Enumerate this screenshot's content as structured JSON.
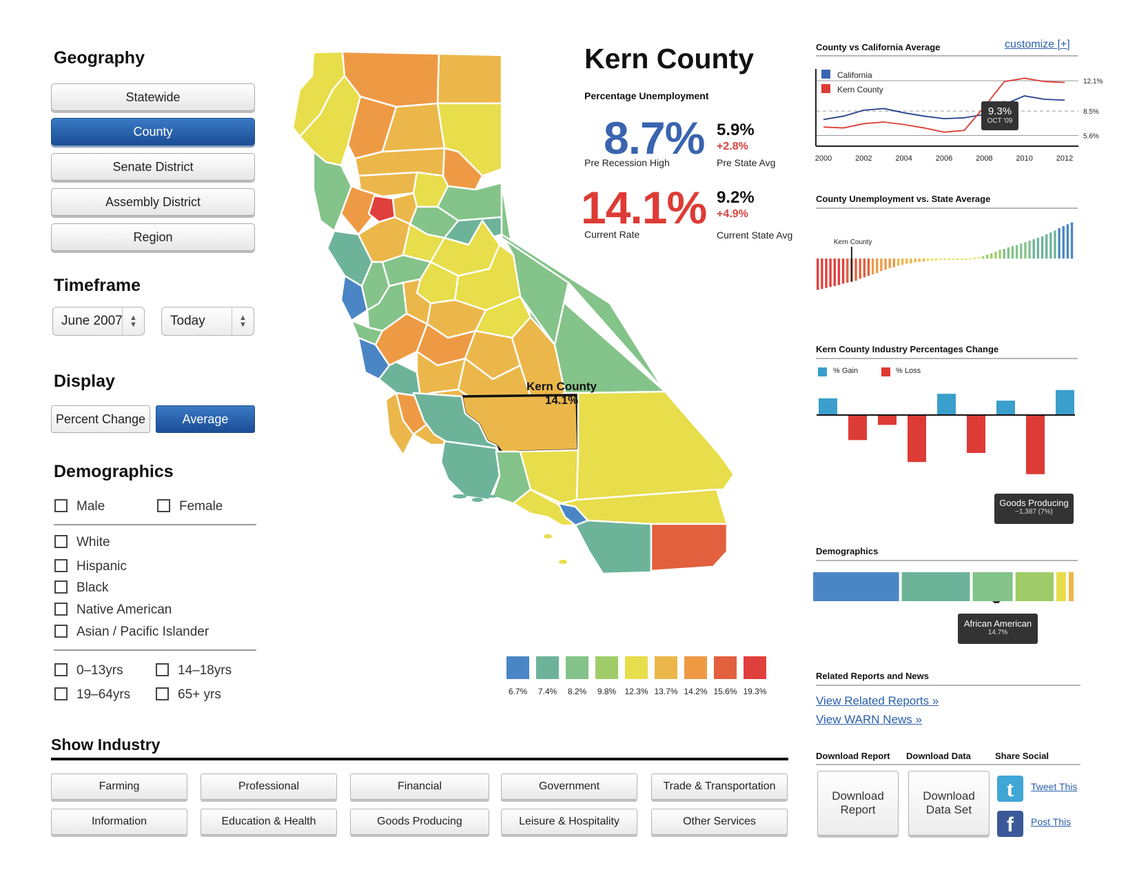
{
  "geography": {
    "title": "Geography",
    "buttons": [
      "Statewide",
      "County",
      "Senate District",
      "Assembly District",
      "Region"
    ],
    "active": "County"
  },
  "timeframe": {
    "title": "Timeframe",
    "start": "June 2007",
    "end": "Today"
  },
  "display": {
    "title": "Display",
    "options": [
      "Percent Change",
      "Average"
    ],
    "active": "Average"
  },
  "demographics_filter": {
    "title": "Demographics",
    "gender": [
      "Male",
      "Female"
    ],
    "race": [
      "White",
      "Hispanic",
      "Black",
      "Native American",
      "Asian / Pacific Islander"
    ],
    "age": [
      "0–13yrs",
      "14–18yrs",
      "19–64yrs",
      "65+ yrs"
    ]
  },
  "industry": {
    "title": "Show Industry",
    "buttons": [
      "Farming",
      "Professional",
      "Financial",
      "Government",
      "Trade & Transportation",
      "Information",
      "Education & Health",
      "Goods Producing",
      "Leisure & Hospitality",
      "Other Services"
    ]
  },
  "map": {
    "label_name": "Kern County",
    "label_value": "14.1%",
    "legend": [
      {
        "label": "6.7%",
        "color": "#4a86c5"
      },
      {
        "label": "7.4%",
        "color": "#6db39a"
      },
      {
        "label": "8.2%",
        "color": "#84c389"
      },
      {
        "label": "9.8%",
        "color": "#9fcc68"
      },
      {
        "label": "12.3%",
        "color": "#e8dd4a"
      },
      {
        "label": "13.7%",
        "color": "#ecb74a"
      },
      {
        "label": "14.2%",
        "color": "#ee9a45"
      },
      {
        "label": "15.6%",
        "color": "#e2603e"
      },
      {
        "label": "19.3%",
        "color": "#e0403c"
      }
    ]
  },
  "summary": {
    "county_name": "Kern County",
    "subtitle": "Percentage Unemployment",
    "pre_recession_high": "8.7%",
    "pre_recession_label": "Pre Recession High",
    "pre_state_avg": "5.9%",
    "pre_state_delta": "+2.8%",
    "pre_state_label": "Pre State Avg",
    "current_rate": "14.1%",
    "current_rate_label": "Current Rate",
    "current_state_avg": "9.2%",
    "current_state_delta": "+4.9%",
    "current_state_label": "Current State Avg",
    "blue": "#3a64b0",
    "red": "#dd3b35"
  },
  "line_panel": {
    "title": "County vs California Average",
    "customize": "customize [+]",
    "legend": [
      "California",
      "Kern County"
    ],
    "y_ticks": [
      "12.1%",
      "8.5%",
      "5.6%"
    ],
    "x_ticks": [
      "2000",
      "2002",
      "2004",
      "2006",
      "2008",
      "2010",
      "2012"
    ],
    "tooltip_value": "9.3%",
    "tooltip_date": "OCT '09"
  },
  "bar_panel": {
    "title": "County Unemployment vs. State Average",
    "marker_label": "Kern County"
  },
  "industry_panel": {
    "title": "Kern County Industry Percentages Change",
    "legend_gain": "% Gain",
    "legend_loss": "% Loss",
    "tooltip_title": "Goods Producing",
    "tooltip_value": "−1,387 (7%)"
  },
  "demo_panel": {
    "title": "Demographics",
    "tooltip_title": "African American",
    "tooltip_value": "14.7%"
  },
  "related": {
    "title": "Related Reports and News",
    "links": [
      "View Related Reports »",
      "View WARN News »"
    ]
  },
  "downloads": {
    "report_header": "Download Report",
    "data_header": "Download Data",
    "social_header": "Share Social",
    "report_button": "Download Report",
    "data_button": "Download Data Set",
    "tweet": "Tweet This",
    "post": "Post This"
  },
  "chart_data": [
    {
      "type": "line",
      "title": "County vs California Average",
      "x": [
        2000,
        2001,
        2002,
        2003,
        2004,
        2005,
        2006,
        2007,
        2008,
        2009,
        2010,
        2011,
        2012
      ],
      "series": [
        {
          "name": "California",
          "values": [
            7.5,
            7.9,
            8.6,
            8.8,
            8.3,
            7.9,
            7.6,
            7.7,
            8.1,
            9.3,
            10.3,
            9.9,
            9.8
          ]
        },
        {
          "name": "Kern County",
          "values": [
            6.6,
            6.5,
            7.0,
            7.2,
            6.9,
            6.5,
            6.0,
            6.2,
            9.0,
            12.0,
            12.4,
            12.0,
            11.9
          ]
        }
      ],
      "y_ticks": [
        "12.1%",
        "8.5%",
        "5.6%"
      ],
      "ylim": [
        4.5,
        13.5
      ]
    },
    {
      "type": "bar",
      "title": "County Unemployment vs. State Average",
      "values": [
        -6.5,
        -6.3,
        -6.1,
        -5.9,
        -5.7,
        -5.5,
        -5.2,
        -5.0,
        -4.8,
        -4.6,
        -4.2,
        -3.9,
        -3.6,
        -3.3,
        -3.0,
        -2.6,
        -2.3,
        -2.0,
        -1.8,
        -1.5,
        -1.3,
        -1.1,
        -1.0,
        -0.8,
        -0.7,
        -0.6,
        -0.5,
        -0.4,
        -0.4,
        -0.3,
        -0.3,
        -0.2,
        -0.2,
        -0.2,
        -0.1,
        -0.1,
        0.1,
        0.2,
        0.3,
        0.5,
        0.8,
        1.1,
        1.4,
        1.8,
        2.0,
        2.3,
        2.6,
        2.8,
        3.1,
        3.4,
        3.7,
        4.0,
        4.3,
        4.6,
        5.0,
        5.4,
        5.8,
        6.3,
        6.7,
        7.1,
        7.5
      ],
      "marker_index": 8
    },
    {
      "type": "bar",
      "title": "Kern County Industry Percentages Change",
      "values": [
        2.2,
        -3.3,
        -1.3,
        -6.2,
        2.8,
        -5.0,
        1.9,
        -7.8,
        3.3
      ],
      "legend": [
        "% Gain",
        "% Loss"
      ]
    },
    {
      "type": "bar",
      "title": "Demographics",
      "values": [
        31.5,
        25.0,
        14.7,
        14.0,
        3.5,
        1.8
      ],
      "colors": [
        "#4a86c5",
        "#6db39a",
        "#84c389",
        "#9fcc68",
        "#e8dd4a",
        "#ecb74a"
      ]
    }
  ]
}
